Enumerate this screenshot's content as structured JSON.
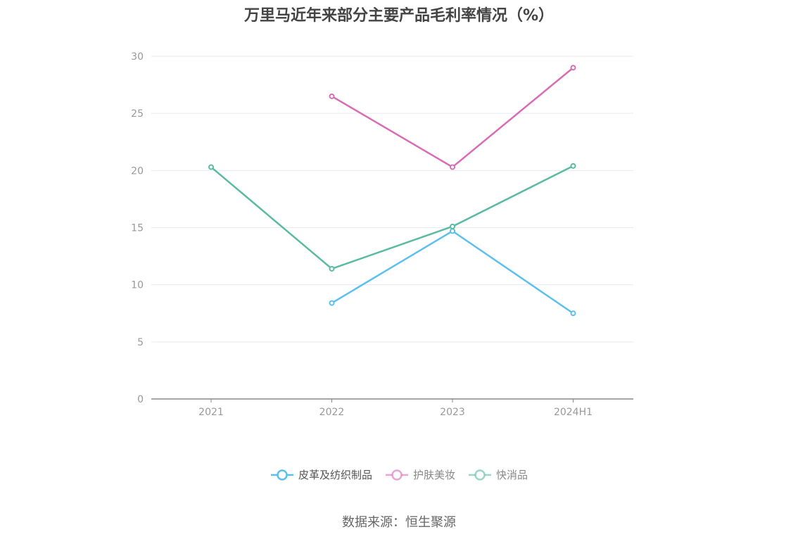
{
  "chart_data": {
    "type": "line",
    "title": "万里马近年来部分主要产品毛利率情况（%）",
    "categories": [
      "2021",
      "2022",
      "2023",
      "2024H1"
    ],
    "ylim": [
      0,
      30
    ],
    "yticks": [
      0,
      5,
      10,
      15,
      20,
      25,
      30
    ],
    "grid": true,
    "legend_position": "bottom-center",
    "series": [
      {
        "name": "皮革及纺织制品",
        "color": "#5bc0ee",
        "values": [
          null,
          8.4,
          14.7,
          7.5
        ]
      },
      {
        "name": "护肤美妆",
        "color": "#d86cb5",
        "values": [
          null,
          26.5,
          20.3,
          29.0
        ]
      },
      {
        "name": "快消品",
        "color": "#5bbba0",
        "values": [
          20.3,
          11.4,
          15.1,
          20.4
        ]
      }
    ]
  },
  "source": "数据来源：恒生聚源"
}
